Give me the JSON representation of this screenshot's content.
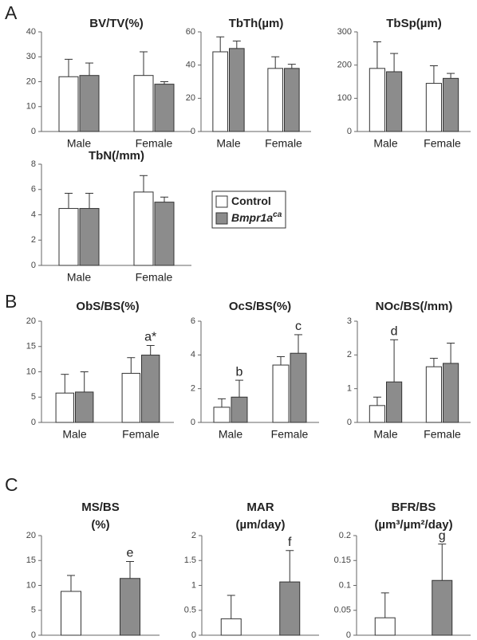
{
  "panel_labels": [
    "A",
    "B",
    "C"
  ],
  "legend": [
    {
      "name": "Control",
      "color": "#ffffff"
    },
    {
      "name": "Bmpr1a",
      "superscript": "ca",
      "color": "#8c8c8c"
    }
  ],
  "chart_data": [
    {
      "type": "bar",
      "title": [
        "BV/TV(%)"
      ],
      "categories": [
        "Male",
        "Female"
      ],
      "ylim": [
        0,
        40
      ],
      "yticks": [
        0,
        10,
        20,
        30,
        40
      ],
      "series": [
        {
          "color": "#ffffff",
          "values": [
            22,
            22.5
          ],
          "errors": [
            7,
            9.5
          ]
        },
        {
          "color": "#8c8c8c",
          "values": [
            22.5,
            19
          ],
          "errors": [
            5,
            1
          ]
        }
      ]
    },
    {
      "type": "bar",
      "title": [
        "TbTh(µm)"
      ],
      "categories": [
        "Male",
        "Female"
      ],
      "ylim": [
        0,
        60
      ],
      "yticks": [
        0,
        20,
        40,
        60
      ],
      "series": [
        {
          "color": "#ffffff",
          "values": [
            48,
            38
          ],
          "errors": [
            9,
            7
          ]
        },
        {
          "color": "#8c8c8c",
          "values": [
            50,
            38
          ],
          "errors": [
            4.5,
            2.5
          ]
        }
      ]
    },
    {
      "type": "bar",
      "title": [
        "TbSp(µm)"
      ],
      "categories": [
        "Male",
        "Female"
      ],
      "ylim": [
        0,
        300
      ],
      "yticks": [
        0,
        100,
        200,
        300
      ],
      "series": [
        {
          "color": "#ffffff",
          "values": [
            190,
            145
          ],
          "errors": [
            80,
            53
          ]
        },
        {
          "color": "#8c8c8c",
          "values": [
            180,
            160
          ],
          "errors": [
            55,
            15
          ]
        }
      ]
    },
    {
      "type": "bar",
      "title": [
        "TbN(/mm)"
      ],
      "categories": [
        "Male",
        "Female"
      ],
      "ylim": [
        0,
        8
      ],
      "yticks": [
        0,
        2,
        4,
        6,
        8
      ],
      "series": [
        {
          "color": "#ffffff",
          "values": [
            4.5,
            5.8
          ],
          "errors": [
            1.2,
            1.3
          ]
        },
        {
          "color": "#8c8c8c",
          "values": [
            4.5,
            5.0
          ],
          "errors": [
            1.2,
            0.4
          ]
        }
      ]
    },
    {
      "type": "bar",
      "title": [
        "ObS/BS(%)"
      ],
      "categories": [
        "Male",
        "Female"
      ],
      "ylim": [
        0,
        20
      ],
      "yticks": [
        0,
        5,
        10,
        15,
        20
      ],
      "series": [
        {
          "color": "#ffffff",
          "values": [
            5.8,
            9.7
          ],
          "errors": [
            3.7,
            3.1
          ]
        },
        {
          "color": "#8c8c8c",
          "values": [
            6,
            13.3
          ],
          "errors": [
            4,
            1.9
          ],
          "annotations": [
            null,
            "a*"
          ]
        }
      ]
    },
    {
      "type": "bar",
      "title": [
        "OcS/BS(%)"
      ],
      "categories": [
        "Male",
        "Female"
      ],
      "ylim": [
        0,
        6
      ],
      "yticks": [
        0,
        2,
        4,
        6
      ],
      "series": [
        {
          "color": "#ffffff",
          "values": [
            0.9,
            3.4
          ],
          "errors": [
            0.5,
            0.5
          ]
        },
        {
          "color": "#8c8c8c",
          "values": [
            1.5,
            4.1
          ],
          "errors": [
            1.0,
            1.1
          ],
          "annotations": [
            "b",
            "c"
          ]
        }
      ]
    },
    {
      "type": "bar",
      "title": [
        "NOc/BS(/mm)"
      ],
      "categories": [
        "Male",
        "Female"
      ],
      "ylim": [
        0,
        3
      ],
      "yticks": [
        0,
        1,
        2,
        3
      ],
      "series": [
        {
          "color": "#ffffff",
          "values": [
            0.5,
            1.65
          ],
          "errors": [
            0.25,
            0.25
          ]
        },
        {
          "color": "#8c8c8c",
          "values": [
            1.2,
            1.75
          ],
          "errors": [
            1.25,
            0.6
          ],
          "annotations": [
            "d",
            null
          ]
        }
      ]
    },
    {
      "type": "bar",
      "title": [
        "MS/BS",
        "(%)"
      ],
      "categories": [
        null
      ],
      "ylim": [
        0,
        20
      ],
      "yticks": [
        0,
        5,
        10,
        15,
        20
      ],
      "series": [
        {
          "color": "#ffffff",
          "values": [
            8.8
          ],
          "errors": [
            3.2
          ]
        },
        {
          "color": "#8c8c8c",
          "values": [
            11.4
          ],
          "errors": [
            3.4
          ],
          "annotations": [
            "e"
          ]
        }
      ]
    },
    {
      "type": "bar",
      "title": [
        "MAR",
        "(µm/day)"
      ],
      "categories": [
        null
      ],
      "ylim": [
        0,
        2
      ],
      "yticks": [
        0,
        0.5,
        1,
        1.5,
        2
      ],
      "series": [
        {
          "color": "#ffffff",
          "values": [
            0.33
          ],
          "errors": [
            0.47
          ]
        },
        {
          "color": "#8c8c8c",
          "values": [
            1.07
          ],
          "errors": [
            0.63
          ],
          "annotations": [
            "f"
          ]
        }
      ]
    },
    {
      "type": "bar",
      "title": [
        "BFR/BS",
        "(µm³/µm²/day)"
      ],
      "categories": [
        null
      ],
      "ylim": [
        0,
        0.2
      ],
      "yticks": [
        0,
        0.05,
        0.1,
        0.15,
        0.2
      ],
      "series": [
        {
          "color": "#ffffff",
          "values": [
            0.035
          ],
          "errors": [
            0.05
          ]
        },
        {
          "color": "#8c8c8c",
          "values": [
            0.11
          ],
          "errors": [
            0.073
          ],
          "annotations": [
            "g"
          ]
        }
      ]
    }
  ]
}
